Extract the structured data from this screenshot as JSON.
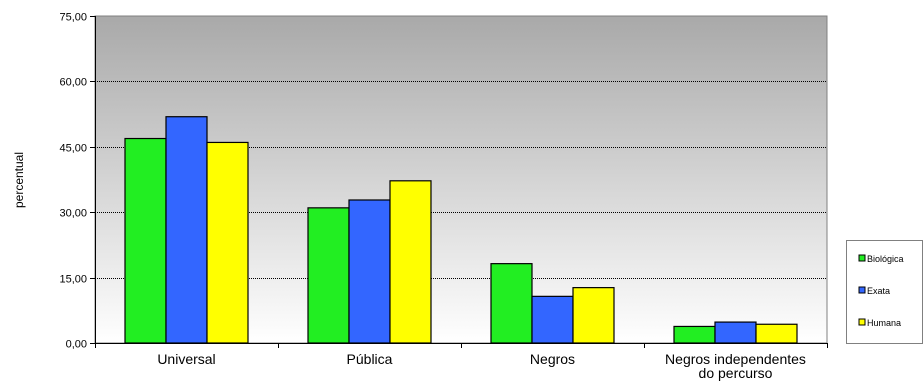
{
  "chart_data": {
    "type": "bar",
    "categories": [
      "Universal",
      "Pública",
      "Negros",
      "Negros independentes do percurso"
    ],
    "category_label_lines": [
      [
        "Universal"
      ],
      [
        "Pública"
      ],
      [
        "Negros"
      ],
      [
        "Negros independentes",
        "do percurso"
      ]
    ],
    "series": [
      {
        "name": "Biológica",
        "color": "#22ee22",
        "values": [
          46.9,
          31.0,
          18.2,
          3.8
        ]
      },
      {
        "name": "Exata",
        "color": "#3366ff",
        "values": [
          51.9,
          32.8,
          10.7,
          4.8
        ]
      },
      {
        "name": "Humana",
        "color": "#ffff00",
        "values": [
          46.0,
          37.2,
          12.7,
          4.3
        ]
      }
    ],
    "title": "",
    "xlabel": "",
    "ylabel": "percentual",
    "ylim": [
      0,
      75
    ],
    "yticks": [
      0,
      15,
      30,
      45,
      60,
      75
    ],
    "ytick_labels": [
      "0,00",
      "15,00",
      "30,00",
      "45,00",
      "60,00",
      "75,00"
    ],
    "grid": true,
    "legend_position": "right",
    "plot_background": "gradient gray to white"
  }
}
